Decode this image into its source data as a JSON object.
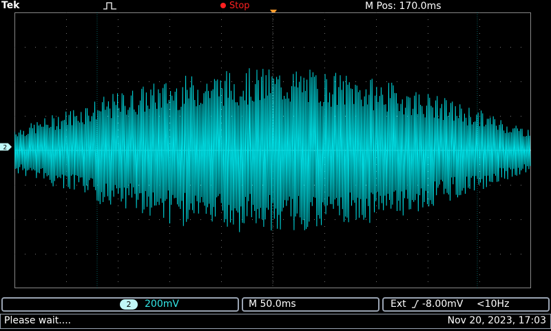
{
  "header": {
    "brand": "Tek",
    "run_state": "Stop",
    "horizontal_position": "M Pos: 170.0ms"
  },
  "display": {
    "channel_marker_label": "2",
    "trigger_marker_label": "T",
    "trace_color": "#00e0e6",
    "grid_color": "#707070",
    "trigger_color": "#ff9b2a"
  },
  "status": {
    "channel_number": "2",
    "channel_scale": "200mV",
    "timebase": "M 50.0ms",
    "trigger_source": "Ext",
    "trigger_level": "-8.00mV",
    "trigger_frequency": "<10Hz",
    "message": "Please wait....",
    "datetime": "Nov 20, 2023, 17:03"
  }
}
